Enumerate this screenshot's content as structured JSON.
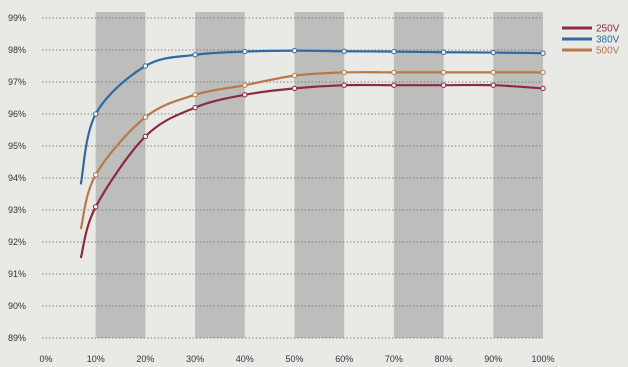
{
  "chart_data": {
    "type": "line",
    "title": "",
    "xlabel": "",
    "ylabel": "",
    "x": [
      7,
      10,
      20,
      30,
      40,
      50,
      60,
      70,
      80,
      90,
      100
    ],
    "xlim": [
      0,
      100
    ],
    "ylim": [
      89,
      99
    ],
    "x_ticks": [
      "0%",
      "10%",
      "20%",
      "30%",
      "40%",
      "50%",
      "60%",
      "70%",
      "80%",
      "90%",
      "100%"
    ],
    "y_ticks": [
      "89%",
      "90%",
      "91%",
      "92%",
      "93%",
      "94%",
      "95%",
      "96%",
      "97%",
      "98%",
      "99%"
    ],
    "grid": "horizontal dotted lines with shaded vertical bands between 10-20%, 30-40%, 50-60%, 70-80%, 90-100%",
    "legend_position": "top-right",
    "series": [
      {
        "name": "250V",
        "color": "#8b2a45",
        "values": [
          91.5,
          93.1,
          95.3,
          96.2,
          96.6,
          96.8,
          96.9,
          96.9,
          96.9,
          96.9,
          96.8
        ]
      },
      {
        "name": "380V",
        "color": "#2f6aa0",
        "values": [
          93.8,
          96.0,
          97.5,
          97.85,
          97.95,
          97.98,
          97.96,
          97.95,
          97.93,
          97.92,
          97.9
        ]
      },
      {
        "name": "500V",
        "color": "#b8784a",
        "values": [
          92.4,
          94.1,
          95.9,
          96.6,
          96.9,
          97.2,
          97.3,
          97.3,
          97.3,
          97.3,
          97.3
        ]
      }
    ]
  }
}
